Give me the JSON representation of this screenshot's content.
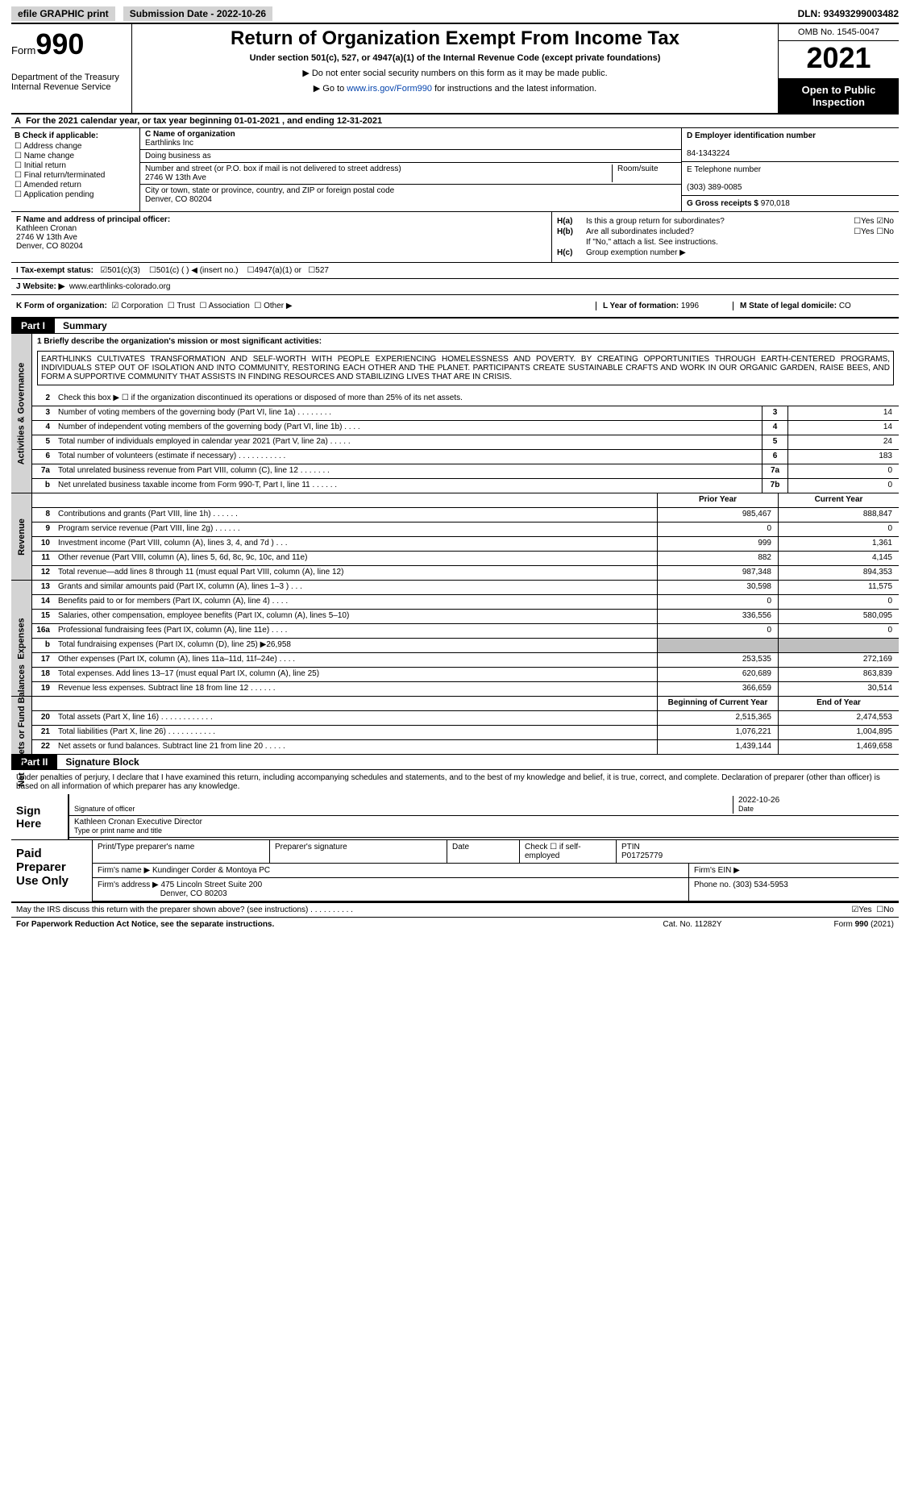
{
  "topbar": {
    "efile": "efile GRAPHIC print",
    "submission": "Submission Date - 2022-10-26",
    "dln": "DLN: 93493299003482"
  },
  "header": {
    "form_label": "Form",
    "form_num": "990",
    "dept": "Department of the Treasury Internal Revenue Service",
    "title": "Return of Organization Exempt From Income Tax",
    "sub": "Under section 501(c), 527, or 4947(a)(1) of the Internal Revenue Code (except private foundations)",
    "note1": "▶ Do not enter social security numbers on this form as it may be made public.",
    "note2_pre": "▶ Go to ",
    "note2_link": "www.irs.gov/Form990",
    "note2_post": " for instructions and the latest information.",
    "omb": "OMB No. 1545-0047",
    "year": "2021",
    "inspection": "Open to Public Inspection"
  },
  "a": "For the 2021 calendar year, or tax year beginning 01-01-2021     , and ending 12-31-2021",
  "b": {
    "label": "B Check if applicable:",
    "opts": [
      "Address change",
      "Name change",
      "Initial return",
      "Final return/terminated",
      "Amended return",
      "Application pending"
    ]
  },
  "c": {
    "name_lbl": "C Name of organization",
    "name": "Earthlinks Inc",
    "dba_lbl": "Doing business as",
    "street_lbl": "Number and street (or P.O. box if mail is not delivered to street address)",
    "room_lbl": "Room/suite",
    "street": "2746 W 13th Ave",
    "city_lbl": "City or town, state or province, country, and ZIP or foreign postal code",
    "city": "Denver, CO   80204"
  },
  "d": {
    "ein_lbl": "D Employer identification number",
    "ein": "84-1343224",
    "tel_lbl": "E Telephone number",
    "tel": "(303) 389-0085",
    "gross_lbl": "G Gross receipts $",
    "gross": "970,018"
  },
  "f": {
    "lbl": "F   Name and address of principal officer:",
    "name": "Kathleen Cronan",
    "street": "2746 W 13th Ave",
    "city": "Denver, CO   80204"
  },
  "h": {
    "ha_lbl": "H(a)",
    "ha_q": "Is this a group return for subordinates?",
    "ha_no": "No",
    "hb_lbl": "H(b)",
    "hb_q": "Are all subordinates included?",
    "hb_note": "If \"No,\" attach a list. See instructions.",
    "hc_lbl": "H(c)",
    "hc_q": "Group exemption number ▶"
  },
  "i": {
    "lbl": "I    Tax-exempt status:",
    "o1": "501(c)(3)",
    "o2": "501(c) (  ) ◀ (insert no.)",
    "o3": "4947(a)(1) or",
    "o4": "527"
  },
  "j": {
    "lbl": "J    Website: ▶",
    "val": "www.earthlinks-colorado.org"
  },
  "k": {
    "lbl": "K Form of organization:",
    "o1": "Corporation",
    "o2": "Trust",
    "o3": "Association",
    "o4": "Other ▶",
    "l_lbl": "L Year of formation:",
    "l_val": "1996",
    "m_lbl": "M State of legal domicile:",
    "m_val": "CO"
  },
  "part1": {
    "num": "Part I",
    "title": "Summary"
  },
  "mission_lbl": "1  Briefly describe the organization's mission or most significant activities:",
  "mission": "EARTHLINKS CULTIVATES TRANSFORMATION AND SELF-WORTH WITH PEOPLE EXPERIENCING HOMELESSNESS AND POVERTY. BY CREATING OPPORTUNITIES THROUGH EARTH-CENTERED PROGRAMS, INDIVIDUALS STEP OUT OF ISOLATION AND INTO COMMUNITY, RESTORING EACH OTHER AND THE PLANET. PARTICIPANTS CREATE SUSTAINABLE CRAFTS AND WORK IN OUR ORGANIC GARDEN, RAISE BEES, AND FORM A SUPPORTIVE COMMUNITY THAT ASSISTS IN FINDING RESOURCES AND STABILIZING LIVES THAT ARE IN CRISIS.",
  "gov_rows": [
    {
      "n": "2",
      "d": "Check this box ▶ ☐  if the organization discontinued its operations or disposed of more than 25% of its net assets."
    },
    {
      "n": "3",
      "d": "Number of voting members of the governing body (Part VI, line 1a)   .    .    .    .    .    .    .    .",
      "cn": "3",
      "cv": "14"
    },
    {
      "n": "4",
      "d": "Number of independent voting members of the governing body (Part VI, line 1b)    .    .    .    .",
      "cn": "4",
      "cv": "14"
    },
    {
      "n": "5",
      "d": "Total number of individuals employed in calendar year 2021 (Part V, line 2a)    .    .    .    .    .",
      "cn": "5",
      "cv": "24"
    },
    {
      "n": "6",
      "d": "Total number of volunteers (estimate if necessary)    .    .    .    .    .    .    .    .    .    .    .",
      "cn": "6",
      "cv": "183"
    },
    {
      "n": "7a",
      "d": "Total unrelated business revenue from Part VIII, column (C), line 12    .    .    .    .    .    .    .",
      "cn": "7a",
      "cv": "0"
    },
    {
      "n": "b",
      "d": "Net unrelated business taxable income from Form 990-T, Part I, line 11    .    .    .    .    .    .",
      "cn": "7b",
      "cv": "0"
    }
  ],
  "rev_hdr": {
    "p": "Prior Year",
    "c": "Current Year"
  },
  "rev_rows": [
    {
      "n": "8",
      "d": "Contributions and grants (Part VIII, line 1h)    .    .    .    .    .    .",
      "p": "985,467",
      "c": "888,847"
    },
    {
      "n": "9",
      "d": "Program service revenue (Part VIII, line 2g)    .    .    .    .    .    .",
      "p": "0",
      "c": "0"
    },
    {
      "n": "10",
      "d": "Investment income (Part VIII, column (A), lines 3, 4, and 7d )    .    .    .",
      "p": "999",
      "c": "1,361"
    },
    {
      "n": "11",
      "d": "Other revenue (Part VIII, column (A), lines 5, 6d, 8c, 9c, 10c, and 11e)",
      "p": "882",
      "c": "4,145"
    },
    {
      "n": "12",
      "d": "Total revenue—add lines 8 through 11 (must equal Part VIII, column (A), line 12)",
      "p": "987,348",
      "c": "894,353"
    }
  ],
  "exp_rows": [
    {
      "n": "13",
      "d": "Grants and similar amounts paid (Part IX, column (A), lines 1–3 )   .    .    .",
      "p": "30,598",
      "c": "11,575"
    },
    {
      "n": "14",
      "d": "Benefits paid to or for members (Part IX, column (A), line 4)    .    .    .    .",
      "p": "0",
      "c": "0"
    },
    {
      "n": "15",
      "d": "Salaries, other compensation, employee benefits (Part IX, column (A), lines 5–10)",
      "p": "336,556",
      "c": "580,095"
    },
    {
      "n": "16a",
      "d": "Professional fundraising fees (Part IX, column (A), line 11e)    .    .    .    .",
      "p": "0",
      "c": "0"
    },
    {
      "n": "b",
      "d": "Total fundraising expenses (Part IX, column (D), line 25) ▶26,958",
      "p": "shade",
      "c": "shade"
    },
    {
      "n": "17",
      "d": "Other expenses (Part IX, column (A), lines 11a–11d, 11f–24e)    .    .    .    .",
      "p": "253,535",
      "c": "272,169"
    },
    {
      "n": "18",
      "d": "Total expenses. Add lines 13–17 (must equal Part IX, column (A), line 25)",
      "p": "620,689",
      "c": "863,839"
    },
    {
      "n": "19",
      "d": "Revenue less expenses. Subtract line 18 from line 12   .    .    .    .    .    .",
      "p": "366,659",
      "c": "30,514"
    }
  ],
  "net_hdr": {
    "p": "Beginning of Current Year",
    "c": "End of Year"
  },
  "net_rows": [
    {
      "n": "20",
      "d": "Total assets (Part X, line 16)    .    .    .    .    .    .    .    .    .    .    .    .",
      "p": "2,515,365",
      "c": "2,474,553"
    },
    {
      "n": "21",
      "d": "Total liabilities (Part X, line 26)    .    .    .    .    .    .    .    .    .    .    .",
      "p": "1,076,221",
      "c": "1,004,895"
    },
    {
      "n": "22",
      "d": "Net assets or fund balances. Subtract line 21 from line 20   .    .    .    .    .",
      "p": "1,439,144",
      "c": "1,469,658"
    }
  ],
  "vside": {
    "gov": "Activities & Governance",
    "rev": "Revenue",
    "exp": "Expenses",
    "net": "Net Assets or Fund Balances"
  },
  "part2": {
    "num": "Part II",
    "title": "Signature Block"
  },
  "sig": {
    "decl": "Under penalties of perjury, I declare that I have examined this return, including accompanying schedules and statements, and to the best of my knowledge and belief, it is true, correct, and complete. Declaration of preparer (other than officer) is based on all information of which preparer has any knowledge.",
    "here": "Sign Here",
    "sig_lbl": "Signature of officer",
    "date_lbl": "Date",
    "date": "2022-10-26",
    "name": "Kathleen Cronan  Executive Director",
    "name_lbl": "Type or print name and title"
  },
  "paid": {
    "lbl": "Paid Preparer Use Only",
    "h1": "Print/Type preparer's name",
    "h2": "Preparer's signature",
    "h3": "Date",
    "h4": "Check ☐ if self-employed",
    "h5": "PTIN",
    "ptin": "P01725779",
    "firm_lbl": "Firm's name      ▶",
    "firm": "Kundinger Corder & Montoya PC",
    "ein_lbl": "Firm's EIN ▶",
    "addr_lbl": "Firm's address ▶",
    "addr": "475 Lincoln Street Suite 200",
    "addr2": "Denver, CO   80203",
    "phone_lbl": "Phone no.",
    "phone": "(303) 534-5953"
  },
  "discuss": "May the IRS discuss this return with the preparer shown above? (see instructions)    .    .    .    .    .    .    .    .    .    .",
  "discuss_yes": "Yes",
  "discuss_no": "No",
  "foot": {
    "l": "For Paperwork Reduction Act Notice, see the separate instructions.",
    "m": "Cat. No. 11282Y",
    "r": "Form 990 (2021)"
  }
}
